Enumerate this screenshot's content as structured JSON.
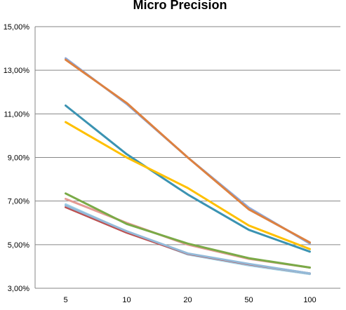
{
  "chart_data": {
    "type": "line",
    "title": "Micro Precision",
    "xlabel": "",
    "ylabel": "",
    "categories": [
      "5",
      "10",
      "20",
      "50",
      "100"
    ],
    "y_ticks": [
      "3,00%",
      "5,00%",
      "7,00%",
      "9,00%",
      "11,00%",
      "13,00%",
      "15,00%"
    ],
    "ylim": [
      3.0,
      15.0
    ],
    "y_unit": "%",
    "grid": "horizontal",
    "legend": "none",
    "series": [
      {
        "color": "#8EA9DB",
        "values": [
          13.55,
          11.45,
          9.0,
          6.7,
          5.05
        ]
      },
      {
        "color": "#DD8140",
        "values": [
          13.48,
          11.5,
          9.0,
          6.62,
          5.1
        ]
      },
      {
        "color": "#3B93B2",
        "values": [
          11.38,
          9.15,
          7.3,
          5.68,
          4.68
        ]
      },
      {
        "color": "#FFC000",
        "values": [
          10.62,
          9.0,
          7.6,
          5.88,
          4.8
        ]
      },
      {
        "color": "#E49A94",
        "values": [
          7.1,
          6.0,
          5.0,
          4.35,
          3.95
        ]
      },
      {
        "color": "#7AAA47",
        "values": [
          7.35,
          5.95,
          5.05,
          4.38,
          3.95
        ]
      },
      {
        "color": "#A2D4E9",
        "values": [
          6.85,
          5.6,
          4.55,
          4.05,
          3.65
        ]
      },
      {
        "color": "#BC4F4F",
        "values": [
          6.72,
          5.55,
          4.58,
          4.1,
          3.68
        ]
      },
      {
        "color": "#93BAD9",
        "values": [
          6.8,
          5.62,
          4.6,
          4.12,
          3.68
        ]
      }
    ]
  }
}
